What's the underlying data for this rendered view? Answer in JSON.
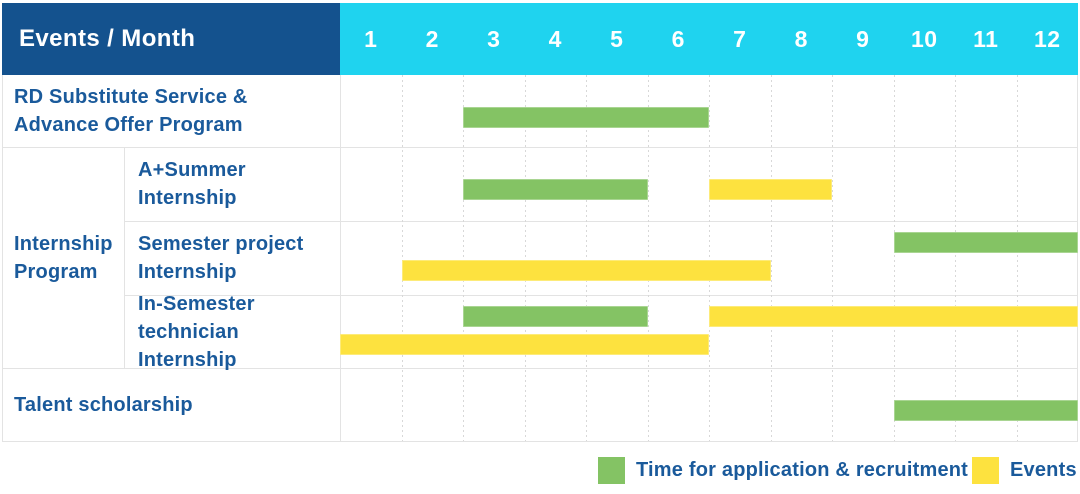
{
  "ui": {
    "title": "Events / Month",
    "months": [
      "1",
      "2",
      "3",
      "4",
      "5",
      "6",
      "7",
      "8",
      "9",
      "10",
      "11",
      "12"
    ],
    "group_label": "Internship\nProgram",
    "rows": [
      {
        "label": "RD Substitute Service &\nAdvance Offer Program",
        "bars": [
          {
            "color": "green",
            "start": 3,
            "end": 6,
            "line": "single"
          }
        ]
      },
      {
        "label": "A+Summer\nInternship",
        "bars": [
          {
            "color": "green",
            "start": 3,
            "end": 5,
            "line": "single"
          },
          {
            "color": "yellow",
            "start": 7,
            "end": 8,
            "line": "single"
          }
        ]
      },
      {
        "label": "Semester project\nInternship",
        "bars": [
          {
            "color": "green",
            "start": 10,
            "end": 12,
            "line": "upper"
          },
          {
            "color": "yellow",
            "start": 2,
            "end": 7,
            "line": "lower"
          }
        ]
      },
      {
        "label": "In-Semester\ntechnician Internship",
        "bars": [
          {
            "color": "green",
            "start": 3,
            "end": 5,
            "line": "upper"
          },
          {
            "color": "yellow",
            "start": 7,
            "end": 12,
            "line": "upper"
          },
          {
            "color": "yellow",
            "start": 1,
            "end": 6,
            "line": "lower"
          }
        ]
      },
      {
        "label": "Talent scholarship",
        "bars": [
          {
            "color": "green",
            "start": 10,
            "end": 12,
            "line": "single"
          }
        ]
      }
    ],
    "legend": [
      {
        "color": "green",
        "label": "Time for application & recruitment"
      },
      {
        "color": "yellow",
        "label": "Events"
      }
    ]
  },
  "colors": {
    "header_navy": "#14528e",
    "months_cyan": "#1fd3ef",
    "bar_green": "#84c364",
    "bar_yellow": "#fde23f",
    "label_blue": "#1a5a9b",
    "grid_gray": "#e3e3e3"
  },
  "chart_data": {
    "type": "bar",
    "subtype": "gantt",
    "title": "Events / Month",
    "x_axis": {
      "label": "Month",
      "ticks": [
        1,
        2,
        3,
        4,
        5,
        6,
        7,
        8,
        9,
        10,
        11,
        12
      ],
      "range": [
        1,
        12
      ],
      "grid": true
    },
    "series_legend": [
      {
        "name": "Time for application & recruitment",
        "color": "#84c364"
      },
      {
        "name": "Events",
        "color": "#fde23f"
      }
    ],
    "rows": [
      {
        "group": null,
        "label": "RD Substitute Service & Advance Offer Program",
        "bars": [
          {
            "series": "Time for application & recruitment",
            "start_month": 3,
            "end_month": 6
          }
        ]
      },
      {
        "group": "Internship Program",
        "label": "A+Summer Internship",
        "bars": [
          {
            "series": "Time for application & recruitment",
            "start_month": 3,
            "end_month": 5
          },
          {
            "series": "Events",
            "start_month": 7,
            "end_month": 8
          }
        ]
      },
      {
        "group": "Internship Program",
        "label": "Semester project Internship",
        "bars": [
          {
            "series": "Time for application & recruitment",
            "start_month": 10,
            "end_month": 12
          },
          {
            "series": "Events",
            "start_month": 2,
            "end_month": 7
          }
        ]
      },
      {
        "group": "Internship Program",
        "label": "In-Semester technician Internship",
        "bars": [
          {
            "series": "Time for application & recruitment",
            "start_month": 3,
            "end_month": 5
          },
          {
            "series": "Events",
            "start_month": 7,
            "end_month": 12
          },
          {
            "series": "Events",
            "start_month": 1,
            "end_month": 6
          }
        ]
      },
      {
        "group": null,
        "label": "Talent scholarship",
        "bars": [
          {
            "series": "Time for application & recruitment",
            "start_month": 10,
            "end_month": 12
          }
        ]
      }
    ]
  }
}
